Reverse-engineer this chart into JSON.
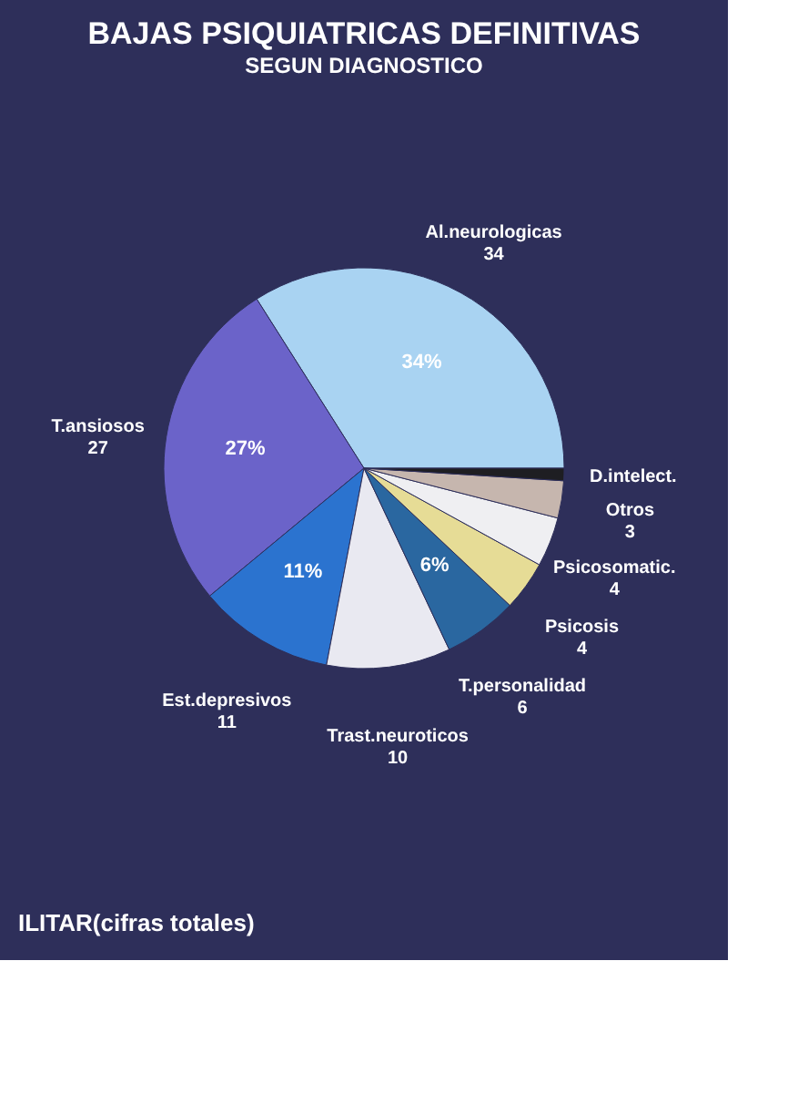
{
  "chart_data": {
    "type": "pie",
    "title": "BAJAS PSIQUIATRICAS DEFINITIVAS",
    "subtitle": "SEGUN DIAGNOSTICO",
    "categories": [
      "Al.neurologicas",
      "T.ansiosos",
      "Est.depresivos",
      "Trast.neuroticos",
      "T.personalidad",
      "Psicosis",
      "Psicosomatic.",
      "Otros",
      "D.intelect."
    ],
    "values": [
      34,
      27,
      11,
      10,
      6,
      4,
      4,
      3,
      1
    ],
    "value_labels": [
      "34",
      "27",
      "11",
      "10",
      "6",
      "4",
      "4",
      "3",
      null
    ],
    "colors": [
      "#a9d3f2",
      "#6b63c9",
      "#2b73cf",
      "#e9e9f1",
      "#2a67a0",
      "#e6dc96",
      "#efeff2",
      "#c6b6ae",
      "#1e1e22"
    ],
    "annotations": [
      {
        "text": "34%",
        "x": "Al.neurologicas"
      },
      {
        "text": "27%",
        "x": "T.ansiosos"
      },
      {
        "text": "11%",
        "x": "Est.depresivos"
      },
      {
        "text": "6%",
        "x": "T.personalidad"
      },
      "ILITAR(cifras totales)"
    ],
    "legend": false
  }
}
